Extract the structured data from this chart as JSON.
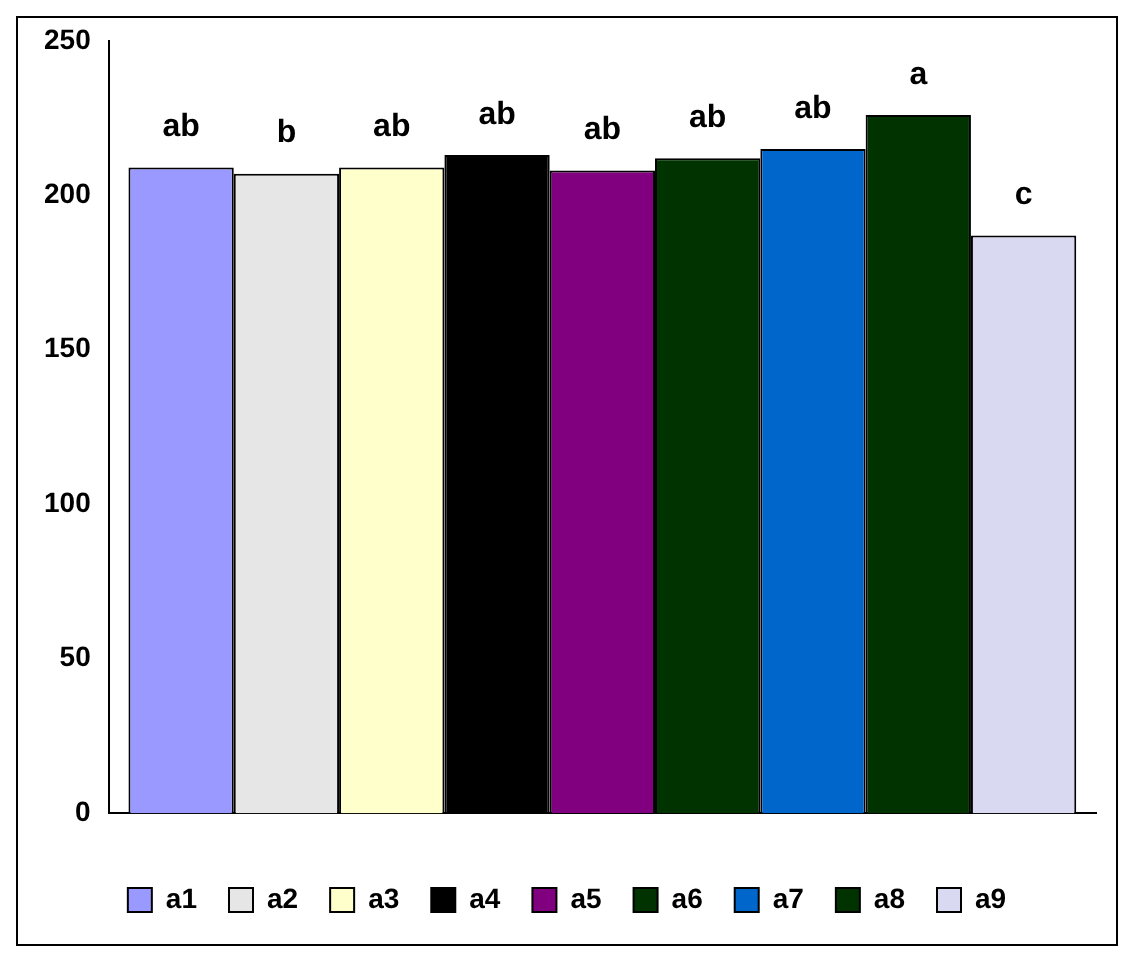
{
  "chart_data": {
    "type": "bar",
    "categories": [
      null
    ],
    "series": [
      {
        "name": "a1",
        "color": "#9999ff",
        "values": [
          209
        ],
        "value_labels": [
          "ab"
        ]
      },
      {
        "name": "a2",
        "color": "#e6e6e6",
        "values": [
          207
        ],
        "value_labels": [
          "b"
        ]
      },
      {
        "name": "a3",
        "color": "#ffffcc",
        "values": [
          209
        ],
        "value_labels": [
          "ab"
        ]
      },
      {
        "name": "a4",
        "color": "#000000",
        "values": [
          213
        ],
        "value_labels": [
          "ab"
        ]
      },
      {
        "name": "a5",
        "color": "#800080",
        "values": [
          208
        ],
        "value_labels": [
          "ab"
        ]
      },
      {
        "name": "a6",
        "color": "#003300",
        "values": [
          212
        ],
        "value_labels": [
          "ab"
        ]
      },
      {
        "name": "a7",
        "color": "#0066cc",
        "values": [
          215
        ],
        "value_labels": [
          "ab"
        ]
      },
      {
        "name": "a8",
        "color": "#003300",
        "values": [
          226
        ],
        "value_labels": [
          "a"
        ]
      },
      {
        "name": "a9",
        "color": "#d9d9f2",
        "values": [
          187
        ],
        "value_labels": [
          "c"
        ]
      }
    ],
    "ylim": [
      0,
      250
    ],
    "yticks": [
      0,
      50,
      100,
      150,
      200,
      250
    ],
    "grid": false,
    "legend": "bottom"
  }
}
